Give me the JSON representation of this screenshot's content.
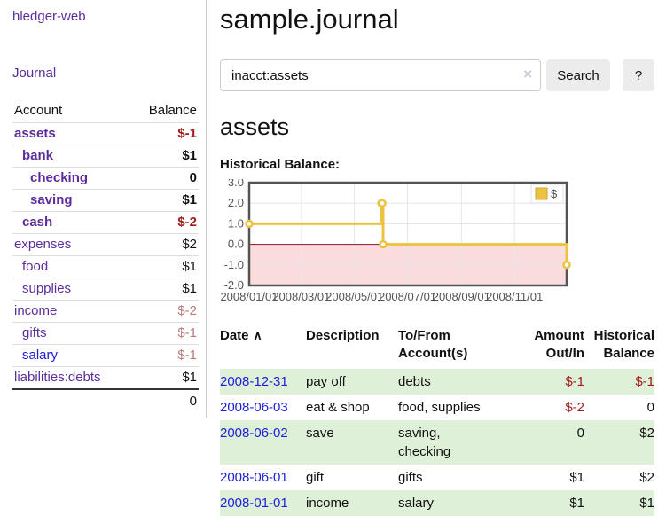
{
  "app": {
    "brand": "hledger-web"
  },
  "sidebar": {
    "nav": {
      "journal": "Journal"
    },
    "accounts_header": {
      "account": "Account",
      "balance": "Balance"
    },
    "accounts": [
      {
        "name": "assets",
        "depth": 0,
        "bold": true,
        "balance": "$-1",
        "balance_class": "neg",
        "link_class": ""
      },
      {
        "name": "bank",
        "depth": 1,
        "bold": true,
        "balance": "$1",
        "balance_class": "",
        "link_class": ""
      },
      {
        "name": "checking",
        "depth": 2,
        "bold": true,
        "balance": "0",
        "balance_class": "",
        "link_class": ""
      },
      {
        "name": "saving",
        "depth": 2,
        "bold": true,
        "balance": "$1",
        "balance_class": "",
        "link_class": ""
      },
      {
        "name": "cash",
        "depth": 1,
        "bold": true,
        "balance": "$-2",
        "balance_class": "neg",
        "link_class": ""
      },
      {
        "name": "expenses",
        "depth": 0,
        "bold": false,
        "balance": "$2",
        "balance_class": "",
        "link_class": ""
      },
      {
        "name": "food",
        "depth": 1,
        "bold": false,
        "balance": "$1",
        "balance_class": "",
        "link_class": ""
      },
      {
        "name": "supplies",
        "depth": 1,
        "bold": false,
        "balance": "$1",
        "balance_class": "",
        "link_class": ""
      },
      {
        "name": "income",
        "depth": 0,
        "bold": false,
        "balance": "$-2",
        "balance_class": "soft-neg",
        "link_class": ""
      },
      {
        "name": "gifts",
        "depth": 1,
        "bold": false,
        "balance": "$-1",
        "balance_class": "soft-neg",
        "link_class": ""
      },
      {
        "name": "salary",
        "depth": 1,
        "bold": false,
        "balance": "$-1",
        "balance_class": "soft-neg",
        "link_class": "blue"
      },
      {
        "name": "liabilities:debts",
        "depth": 0,
        "bold": false,
        "balance": "$1",
        "balance_class": "",
        "link_class": ""
      }
    ],
    "total": "0"
  },
  "main": {
    "title": "sample.journal",
    "search": {
      "value": "inacct:assets",
      "clear_icon": "×",
      "search_button": "Search",
      "help_button": "?"
    },
    "account_heading": "assets",
    "chart_label": "Historical Balance:"
  },
  "chart_data": {
    "type": "line",
    "title": "Historical Balance",
    "style": "steps",
    "series": [
      {
        "name": "$",
        "color": "#edc240",
        "points": [
          {
            "date": "2008-01-01",
            "value": 1
          },
          {
            "date": "2008-06-01",
            "value": 2
          },
          {
            "date": "2008-06-02",
            "value": 2
          },
          {
            "date": "2008-06-03",
            "value": 0
          },
          {
            "date": "2008-12-31",
            "value": -1
          }
        ]
      }
    ],
    "xlim": [
      "2008-01-01",
      "2008-12-31"
    ],
    "ylim": [
      -2,
      3
    ],
    "yticks": [
      3,
      2,
      1,
      0,
      -1,
      -2
    ],
    "ytick_labels": [
      "3.0",
      "2.0",
      "1.0",
      "0.0",
      "-1.0",
      "-2.0"
    ],
    "xticks": [
      "2008-01-01",
      "2008-03-01",
      "2008-05-01",
      "2008-07-01",
      "2008-09-01",
      "2008-11-01"
    ],
    "xtick_labels": [
      "2008/01/01",
      "2008/03/01",
      "2008/05/01",
      "2008/07/01",
      "2008/09/01",
      "2008/11/01"
    ],
    "legend": {
      "label": "$",
      "position": "top-right"
    },
    "grid": true,
    "colors": {
      "grid": "#e6e6e6",
      "border": "#545454",
      "negative_region": "#fbdcdc",
      "zero_line": "#8b1717",
      "tick_text": "#545454",
      "legend_swatch_border": "#cda434"
    }
  },
  "register": {
    "columns": [
      "Date",
      "Description",
      "To/From Account(s)",
      "Amount Out/In",
      "Historical Balance"
    ],
    "sort_asc_icon": "∧",
    "rows": [
      {
        "date": "2008-12-31",
        "description": "pay off",
        "to_from": "debts",
        "amount": "$-1",
        "amount_neg": true,
        "balance": "$-1",
        "balance_neg": true
      },
      {
        "date": "2008-06-03",
        "description": "eat & shop",
        "to_from": "food, supplies",
        "amount": "$-2",
        "amount_neg": true,
        "balance": "0",
        "balance_neg": false
      },
      {
        "date": "2008-06-02",
        "description": "save",
        "to_from": "saving,\nchecking",
        "amount": "0",
        "amount_neg": false,
        "balance": "$2",
        "balance_neg": false
      },
      {
        "date": "2008-06-01",
        "description": "gift",
        "to_from": "gifts",
        "amount": "$1",
        "amount_neg": false,
        "balance": "$2",
        "balance_neg": false
      },
      {
        "date": "2008-01-01",
        "description": "income",
        "to_from": "salary",
        "amount": "$1",
        "amount_neg": false,
        "balance": "$1",
        "balance_neg": false
      }
    ]
  }
}
